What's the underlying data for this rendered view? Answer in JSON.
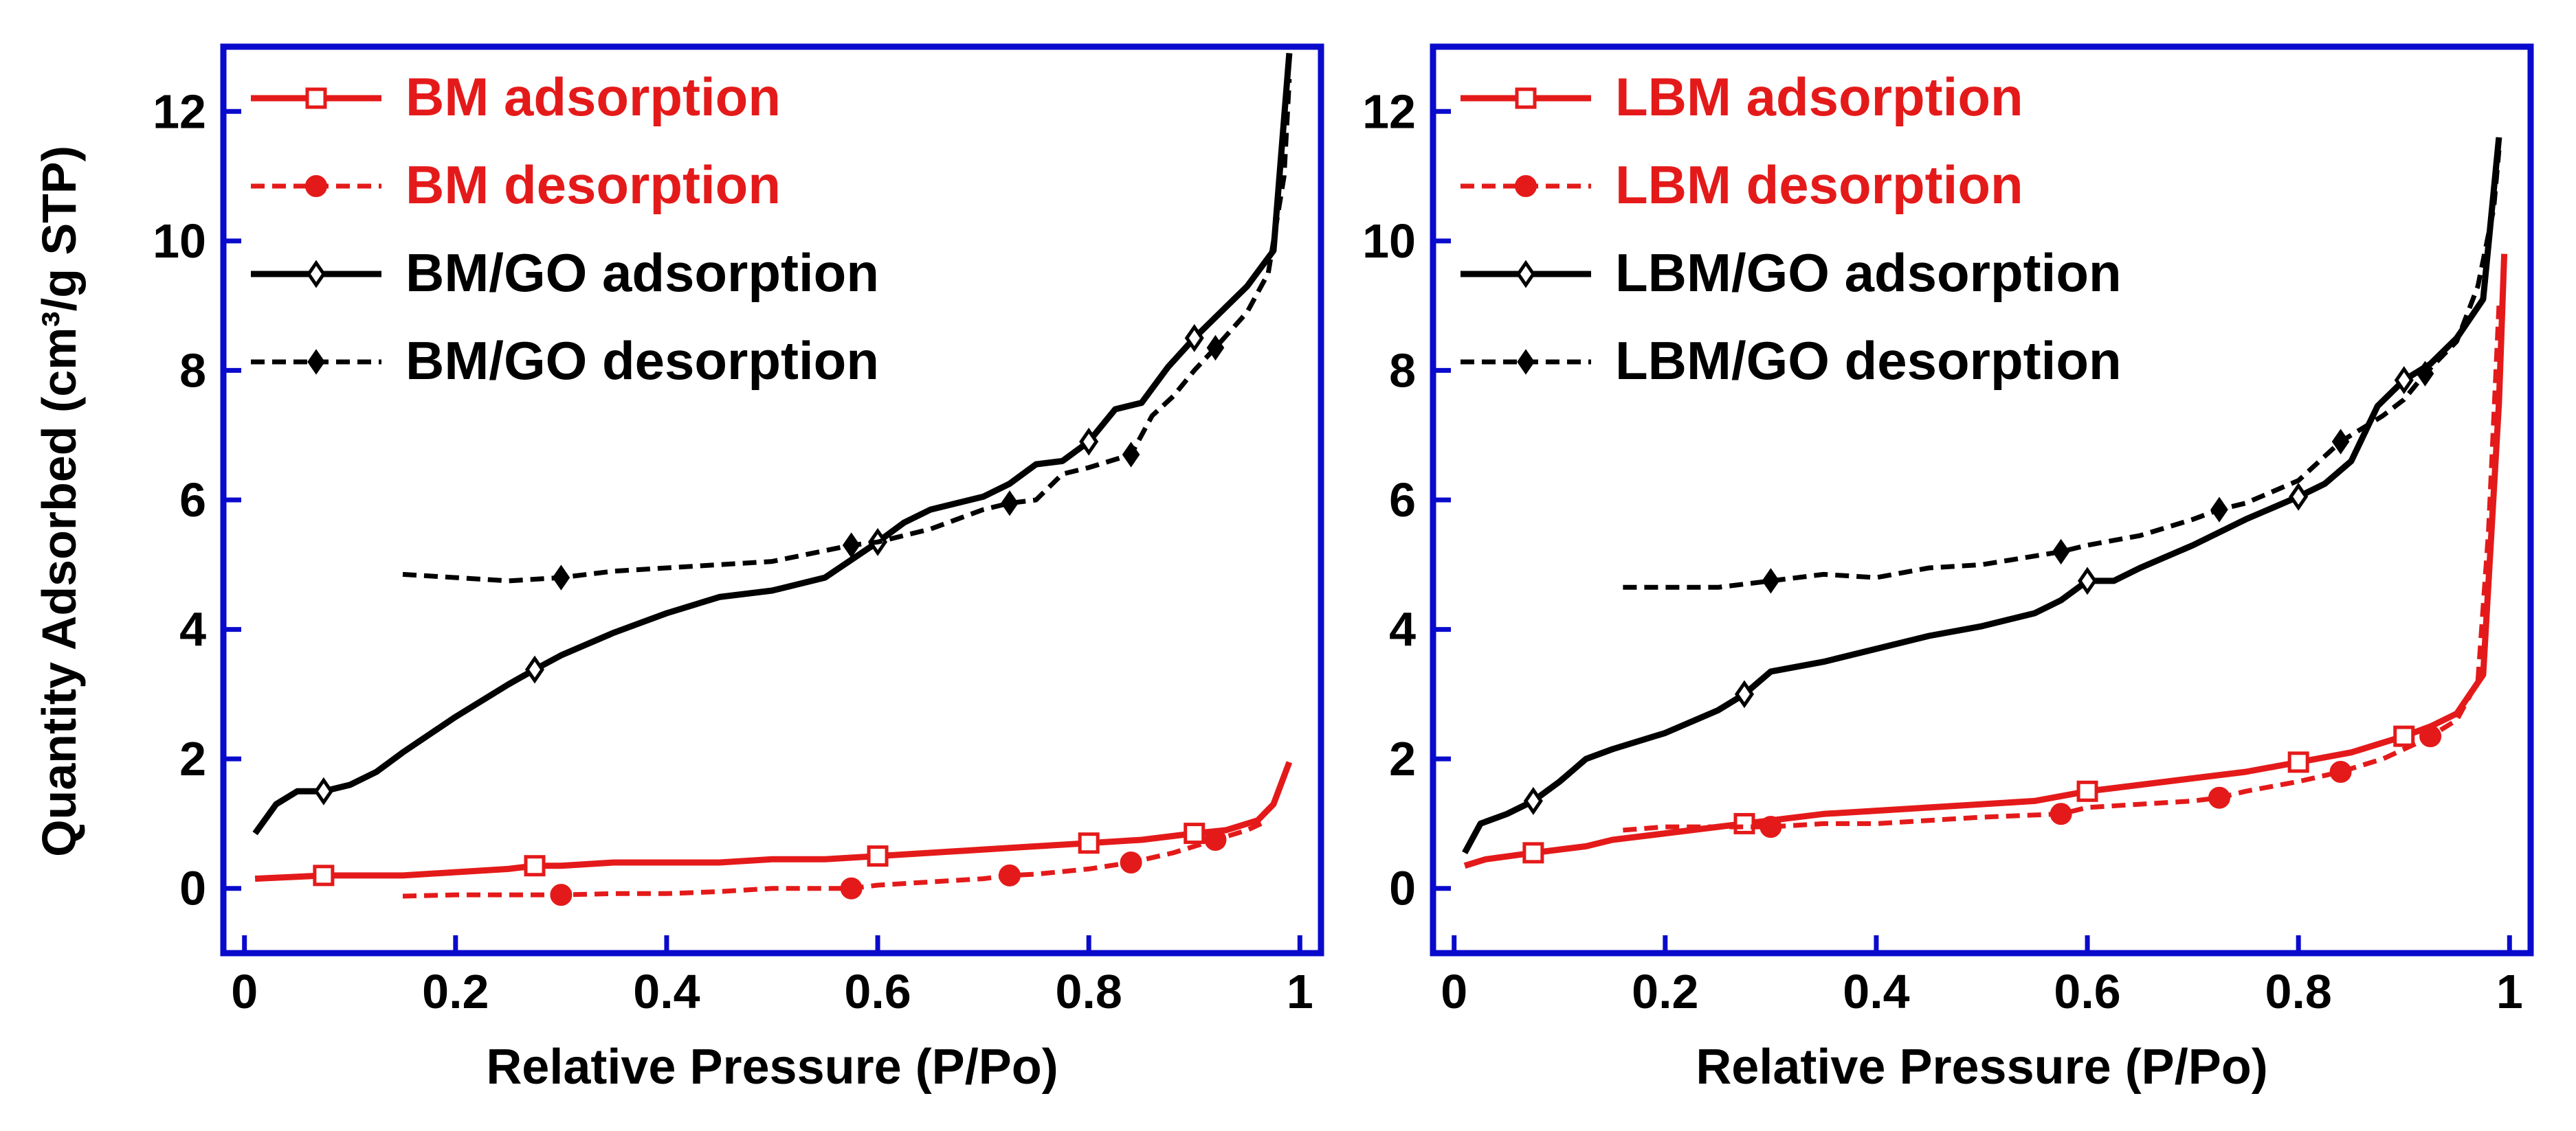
{
  "figure": {
    "y_axis_label": "Quantity Adsorbed (cm³/g STP)"
  },
  "chart_data": [
    {
      "type": "line",
      "panel": "left",
      "xlabel": "Relative Pressure (P/Po)",
      "ylabel": "Quantity Adsorbed (cm³/g STP)",
      "xlim": [
        -0.02,
        1.02
      ],
      "ylim": [
        -1,
        13
      ],
      "x_ticks": [
        0,
        0.2,
        0.4,
        0.6,
        0.8,
        1
      ],
      "x_tick_labels": [
        "0",
        "0.2",
        "0.4",
        "0.6",
        "0.8",
        "1"
      ],
      "y_ticks": [
        0,
        2,
        4,
        6,
        8,
        10,
        12
      ],
      "y_tick_labels": [
        "0",
        "2",
        "4",
        "6",
        "8",
        "10",
        "12"
      ],
      "legend_position": "top-left",
      "series": [
        {
          "name": "BM adsorption",
          "color": "#e41a1a",
          "dash": "solid",
          "marker": "open-square",
          "x": [
            0.01,
            0.05,
            0.075,
            0.1,
            0.15,
            0.2,
            0.25,
            0.275,
            0.3,
            0.35,
            0.4,
            0.45,
            0.5,
            0.55,
            0.6,
            0.65,
            0.7,
            0.75,
            0.8,
            0.85,
            0.9,
            0.93,
            0.96,
            0.975,
            0.99
          ],
          "y": [
            0.15,
            0.18,
            0.2,
            0.2,
            0.2,
            0.25,
            0.3,
            0.35,
            0.35,
            0.4,
            0.4,
            0.4,
            0.45,
            0.45,
            0.5,
            0.55,
            0.6,
            0.65,
            0.7,
            0.75,
            0.85,
            0.9,
            1.05,
            1.3,
            1.95
          ],
          "marker_x": [
            0.075,
            0.275,
            0.6,
            0.8,
            0.9
          ]
        },
        {
          "name": "BM desorption",
          "color": "#e41a1a",
          "dash": "dashed",
          "marker": "filled-circle",
          "x": [
            0.15,
            0.2,
            0.25,
            0.3,
            0.35,
            0.4,
            0.45,
            0.5,
            0.575,
            0.6,
            0.65,
            0.7,
            0.725,
            0.75,
            0.8,
            0.84,
            0.88,
            0.92,
            0.95,
            0.97
          ],
          "y": [
            -0.12,
            -0.1,
            -0.1,
            -0.1,
            -0.08,
            -0.08,
            -0.05,
            0.0,
            0.0,
            0.05,
            0.1,
            0.15,
            0.2,
            0.22,
            0.3,
            0.4,
            0.55,
            0.75,
            0.9,
            1.05
          ],
          "marker_x": [
            0.3,
            0.575,
            0.725,
            0.84,
            0.92
          ]
        },
        {
          "name": "BM/GO adsorption",
          "color": "#000000",
          "dash": "solid",
          "marker": "open-diamond",
          "x": [
            0.01,
            0.03,
            0.05,
            0.075,
            0.1,
            0.125,
            0.15,
            0.2,
            0.25,
            0.275,
            0.3,
            0.35,
            0.4,
            0.45,
            0.5,
            0.55,
            0.6,
            0.625,
            0.65,
            0.7,
            0.725,
            0.75,
            0.775,
            0.8,
            0.825,
            0.85,
            0.875,
            0.9,
            0.925,
            0.95,
            0.975,
            0.99
          ],
          "y": [
            0.85,
            1.3,
            1.5,
            1.5,
            1.6,
            1.8,
            2.1,
            2.65,
            3.15,
            3.38,
            3.6,
            3.95,
            4.25,
            4.5,
            4.6,
            4.8,
            5.35,
            5.65,
            5.85,
            6.05,
            6.25,
            6.55,
            6.6,
            6.9,
            7.4,
            7.5,
            8.05,
            8.5,
            8.9,
            9.3,
            9.85,
            12.9
          ],
          "marker_x": [
            0.075,
            0.275,
            0.6,
            0.8,
            0.9
          ]
        },
        {
          "name": "BM/GO desorption",
          "color": "#000000",
          "dash": "dashed",
          "marker": "filled-diamond",
          "x": [
            0.15,
            0.2,
            0.25,
            0.3,
            0.35,
            0.4,
            0.45,
            0.5,
            0.575,
            0.6,
            0.65,
            0.7,
            0.725,
            0.75,
            0.775,
            0.8,
            0.84,
            0.86,
            0.88,
            0.9,
            0.92,
            0.95,
            0.97,
            0.985,
            0.99
          ],
          "y": [
            4.85,
            4.8,
            4.75,
            4.8,
            4.9,
            4.95,
            5.0,
            5.05,
            5.3,
            5.35,
            5.55,
            5.85,
            5.95,
            6.0,
            6.4,
            6.5,
            6.7,
            7.3,
            7.6,
            8.0,
            8.35,
            8.9,
            9.5,
            11.0,
            12.5
          ],
          "marker_x": [
            0.3,
            0.575,
            0.725,
            0.84,
            0.92
          ]
        }
      ]
    },
    {
      "type": "line",
      "panel": "right",
      "xlabel": "Relative Pressure (P/Po)",
      "ylabel": "",
      "xlim": [
        -0.02,
        1.02
      ],
      "ylim": [
        -1,
        13
      ],
      "x_ticks": [
        0,
        0.2,
        0.4,
        0.6,
        0.8,
        1
      ],
      "x_tick_labels": [
        "0",
        "0.2",
        "0.4",
        "0.6",
        "0.8",
        "1"
      ],
      "y_ticks": [
        0,
        2,
        4,
        6,
        8,
        10,
        12
      ],
      "y_tick_labels": [
        "0",
        "2",
        "4",
        "6",
        "8",
        "10",
        "12"
      ],
      "legend_position": "top-left",
      "series": [
        {
          "name": "LBM adsorption",
          "color": "#e41a1a",
          "dash": "solid",
          "marker": "open-square",
          "x": [
            0.01,
            0.03,
            0.075,
            0.125,
            0.15,
            0.2,
            0.25,
            0.275,
            0.3,
            0.35,
            0.4,
            0.45,
            0.5,
            0.55,
            0.6,
            0.625,
            0.65,
            0.7,
            0.75,
            0.8,
            0.85,
            0.9,
            0.925,
            0.95,
            0.975,
            0.99,
            0.995
          ],
          "y": [
            0.35,
            0.45,
            0.55,
            0.65,
            0.75,
            0.85,
            0.95,
            1.0,
            1.05,
            1.15,
            1.2,
            1.25,
            1.3,
            1.35,
            1.5,
            1.55,
            1.6,
            1.7,
            1.8,
            1.95,
            2.1,
            2.35,
            2.5,
            2.7,
            3.3,
            7.5,
            9.8
          ],
          "marker_x": [
            0.075,
            0.275,
            0.6,
            0.8,
            0.9
          ]
        },
        {
          "name": "LBM desorption",
          "color": "#e41a1a",
          "dash": "dashed",
          "marker": "filled-circle",
          "x": [
            0.16,
            0.2,
            0.25,
            0.3,
            0.35,
            0.4,
            0.45,
            0.5,
            0.575,
            0.6,
            0.65,
            0.7,
            0.725,
            0.75,
            0.8,
            0.84,
            0.88,
            0.92,
            0.95,
            0.97,
            0.98,
            0.99
          ],
          "y": [
            0.9,
            0.95,
            0.95,
            0.95,
            1.0,
            1.0,
            1.05,
            1.1,
            1.15,
            1.25,
            1.3,
            1.35,
            1.4,
            1.5,
            1.65,
            1.8,
            2.0,
            2.3,
            2.6,
            3.2,
            5.5,
            9.0
          ],
          "marker_x": [
            0.3,
            0.575,
            0.725,
            0.84,
            0.925
          ]
        },
        {
          "name": "LBM/GO adsorption",
          "color": "#000000",
          "dash": "solid",
          "marker": "open-diamond",
          "x": [
            0.01,
            0.025,
            0.05,
            0.075,
            0.1,
            0.125,
            0.15,
            0.2,
            0.25,
            0.275,
            0.3,
            0.35,
            0.4,
            0.45,
            0.5,
            0.55,
            0.575,
            0.6,
            0.625,
            0.65,
            0.7,
            0.75,
            0.8,
            0.825,
            0.85,
            0.875,
            0.9,
            0.925,
            0.95,
            0.975,
            0.99
          ],
          "y": [
            0.55,
            1.0,
            1.15,
            1.35,
            1.65,
            2.0,
            2.15,
            2.4,
            2.75,
            3.0,
            3.35,
            3.5,
            3.7,
            3.9,
            4.05,
            4.25,
            4.45,
            4.75,
            4.75,
            4.95,
            5.3,
            5.7,
            6.05,
            6.25,
            6.6,
            7.45,
            7.85,
            8.1,
            8.5,
            9.1,
            11.6
          ],
          "marker_x": [
            0.075,
            0.275,
            0.6,
            0.8,
            0.9
          ]
        },
        {
          "name": "LBM/GO desorption",
          "color": "#000000",
          "dash": "dashed",
          "marker": "filled-diamond",
          "x": [
            0.16,
            0.2,
            0.25,
            0.3,
            0.35,
            0.4,
            0.45,
            0.5,
            0.575,
            0.6,
            0.65,
            0.7,
            0.725,
            0.75,
            0.8,
            0.84,
            0.88,
            0.9,
            0.92,
            0.95,
            0.97,
            0.985,
            0.99
          ],
          "y": [
            4.65,
            4.65,
            4.65,
            4.75,
            4.85,
            4.8,
            4.95,
            5.0,
            5.2,
            5.3,
            5.45,
            5.7,
            5.85,
            5.95,
            6.3,
            6.9,
            7.3,
            7.55,
            7.95,
            8.45,
            9.3,
            10.5,
            11.4
          ],
          "marker_x": [
            0.3,
            0.575,
            0.725,
            0.84,
            0.92
          ]
        }
      ]
    }
  ]
}
